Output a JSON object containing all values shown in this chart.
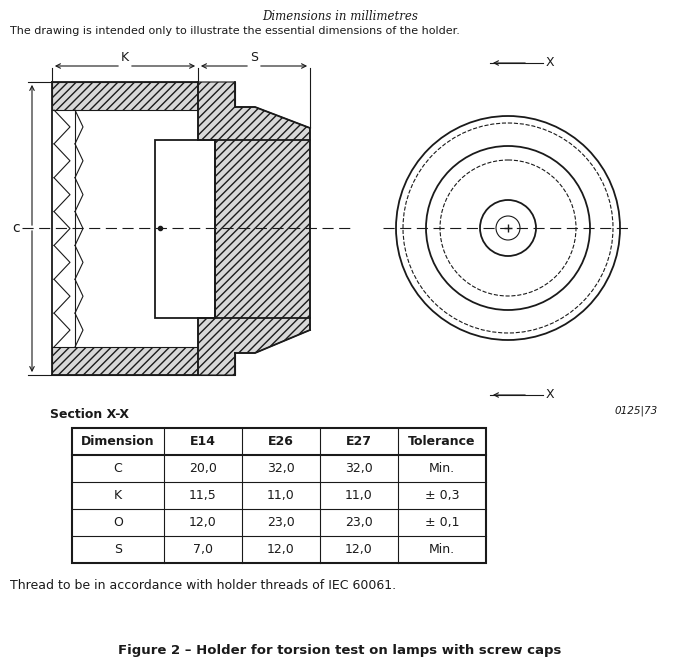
{
  "title_italic": "Dimensions in millimetres",
  "subtitle": "The drawing is intended only to illustrate the essential dimensions of the holder.",
  "section_label": "Section X-X",
  "ref_number": "0125|73",
  "thread_note": "Thread to be in accordance with holder threads of IEC 60061.",
  "figure_caption": "Figure 2 – Holder for torsion test on lamps with screw caps",
  "table_headers": [
    "Dimension",
    "E14",
    "E26",
    "E27",
    "Tolerance"
  ],
  "table_rows": [
    [
      "C",
      "20,0",
      "32,0",
      "32,0",
      "Min."
    ],
    [
      "K",
      "11,5",
      "11,0",
      "11,0",
      "± 0,3"
    ],
    [
      "O",
      "12,0",
      "23,0",
      "23,0",
      "± 0,1"
    ],
    [
      "S",
      "7,0",
      "12,0",
      "12,0",
      "Min."
    ]
  ],
  "bg_color": "#ffffff",
  "line_color": "#1a1a1a"
}
